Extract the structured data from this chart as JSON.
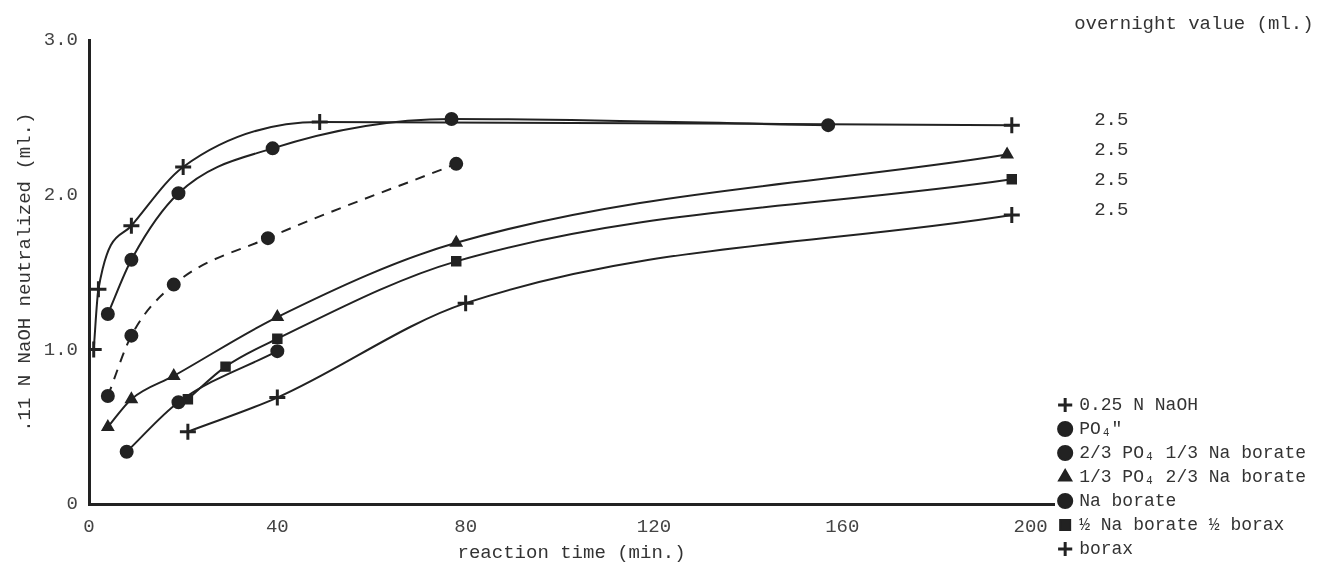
{
  "chart_data": {
    "type": "line",
    "xlabel": "reaction time (min.)",
    "ylabel": ".11 N NaOH neutralized (ml.)",
    "xlim": [
      0,
      205
    ],
    "xticks": [
      0,
      40,
      80,
      120,
      160,
      200
    ],
    "ylim": [
      0,
      3.0
    ],
    "yticks": [
      0,
      {
        "value": 1,
        "label": "1.0"
      },
      {
        "value": 2,
        "label": "2.0"
      },
      {
        "value": 3,
        "label": "3.0"
      }
    ],
    "grid": false,
    "legend": "bottom right",
    "series": [
      {
        "name": "0.25 N NaOH",
        "color": "#222222",
        "marker": "cross",
        "line_style": "solid",
        "x": [
          1,
          2,
          9,
          20,
          49,
          196
        ],
        "values": [
          1.0,
          1.39,
          1.8,
          2.18,
          2.47,
          2.45
        ]
      },
      {
        "name": "PO₄\"",
        "color": "#222222",
        "marker": "circle",
        "line_style": "solid",
        "x": [
          4,
          9,
          19,
          39,
          77,
          157
        ],
        "values": [
          1.23,
          1.58,
          2.01,
          2.3,
          2.49,
          2.45
        ]
      },
      {
        "name": "2/3 PO₄ 1/3 Na borate",
        "color": "#222222",
        "marker": "circle",
        "line_style": "dashed",
        "x": [
          4,
          9,
          18,
          38,
          78
        ],
        "values": [
          0.7,
          1.09,
          1.42,
          1.72,
          2.2
        ]
      },
      {
        "name": "1/3 PO₄ 2/3 Na borate",
        "color": "#222222",
        "marker": "triangle",
        "line_style": "solid",
        "x": [
          4,
          9,
          18,
          40,
          78,
          195
        ],
        "values": [
          0.5,
          0.68,
          0.83,
          1.21,
          1.69,
          2.26
        ]
      },
      {
        "name": "Na borate",
        "color": "#222222",
        "marker": "circle",
        "line_style": "solid",
        "x": [
          8,
          19,
          40
        ],
        "values": [
          0.34,
          0.66,
          0.99
        ]
      },
      {
        "name": "½ Na borate ½ borax",
        "color": "#222222",
        "marker": "square",
        "line_style": "solid",
        "x": [
          21,
          29,
          40,
          78,
          196
        ],
        "values": [
          0.68,
          0.89,
          1.07,
          1.57,
          2.1
        ]
      },
      {
        "name": "borax",
        "color": "#222222",
        "marker": "cross",
        "line_style": "solid",
        "x": [
          21,
          40,
          80,
          196
        ],
        "values": [
          0.47,
          0.69,
          1.3,
          1.87
        ]
      }
    ],
    "annotations": [
      "overnight value (ml.)",
      "2.5",
      "2.5",
      "2.5",
      "2.5"
    ]
  }
}
